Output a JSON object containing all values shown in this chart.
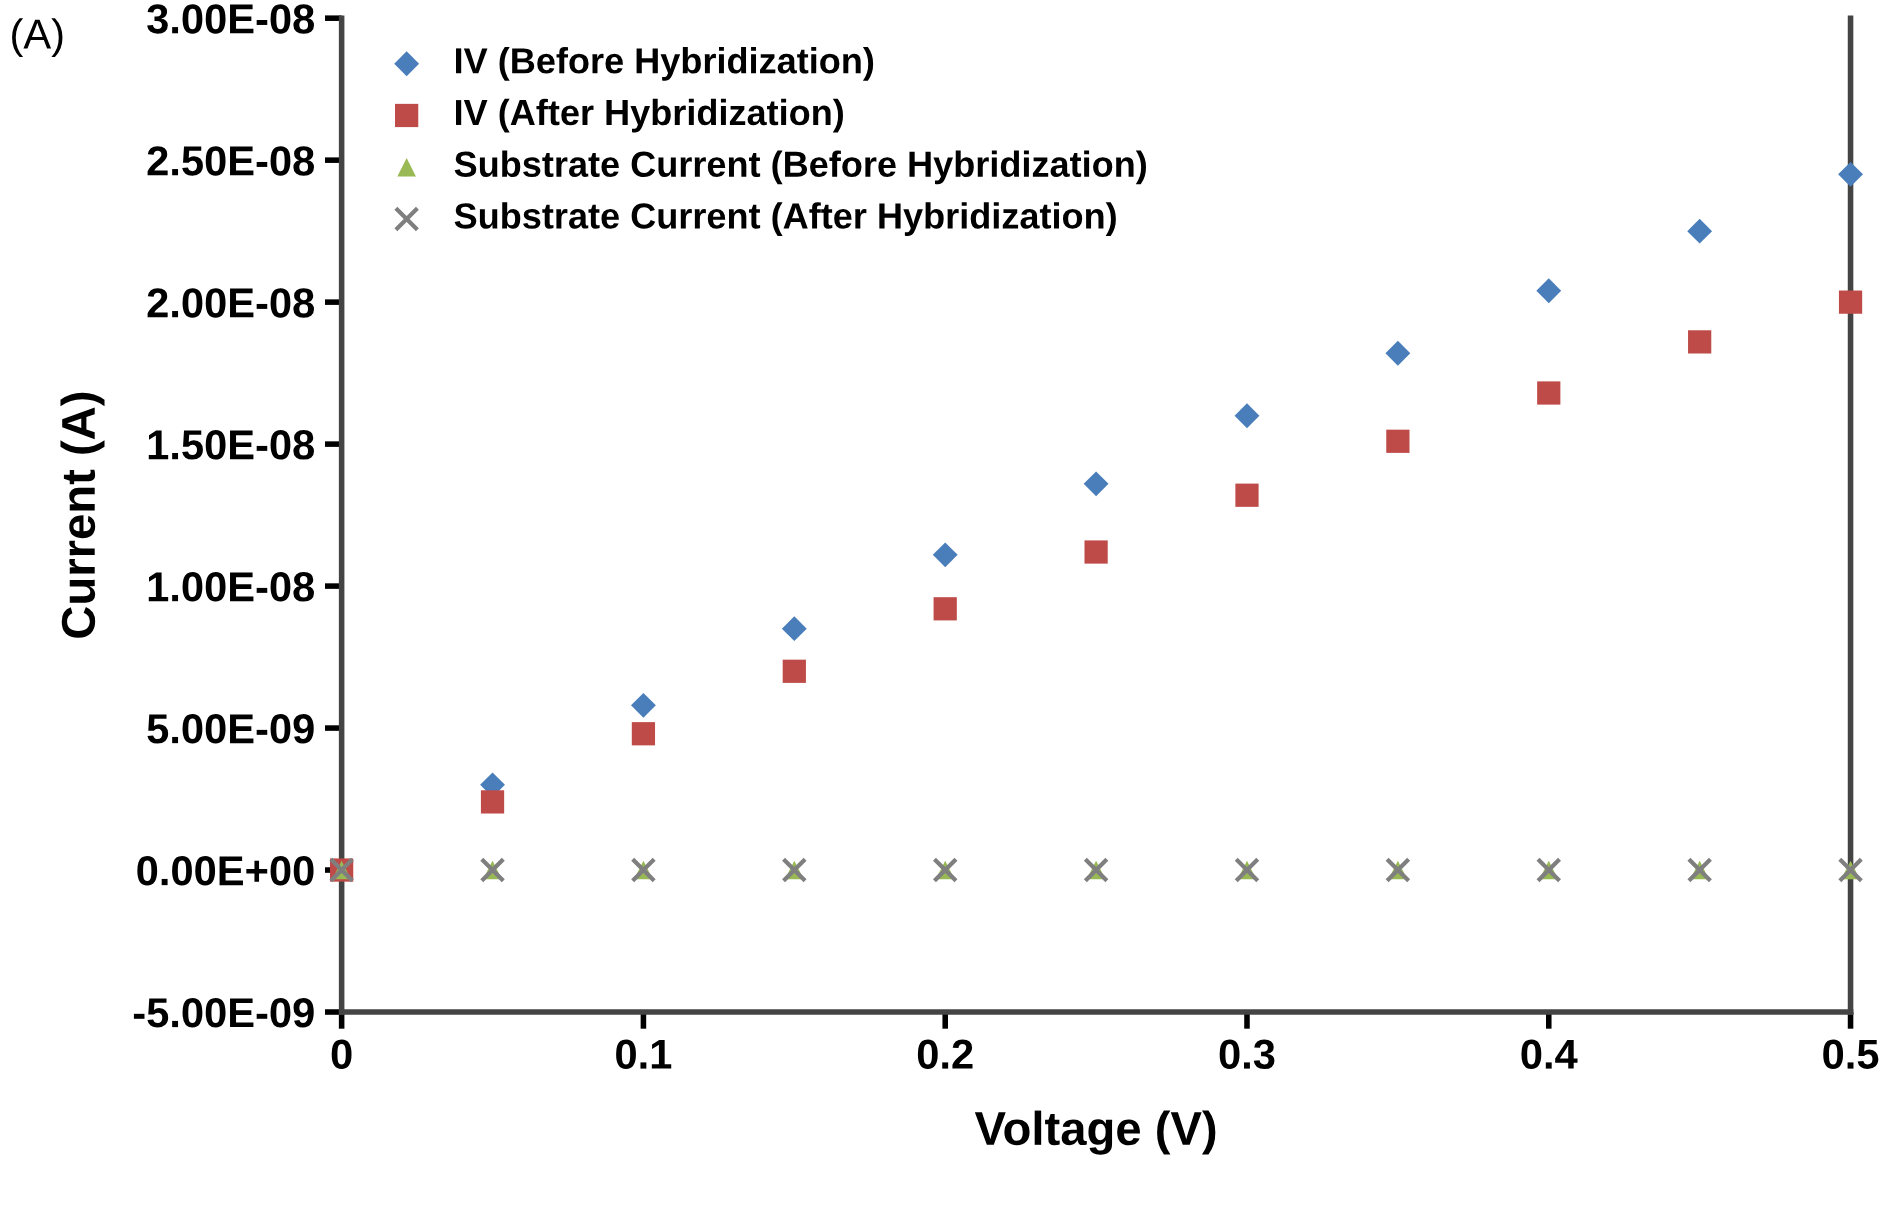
{
  "chart_data": {
    "type": "scatter",
    "xlabel": "Voltage (V)",
    "ylabel": "Current (A)",
    "annotations": [
      "(A)"
    ],
    "x": [
      0,
      0.05,
      0.1,
      0.15,
      0.2,
      0.25,
      0.3,
      0.35,
      0.4,
      0.45,
      0.5
    ],
    "series": [
      {
        "name": "IV (Before Hybridization)",
        "color": "#4a7ebb",
        "marker": "diamond",
        "values": [
          null,
          3e-09,
          5.8e-09,
          8.5e-09,
          1.11e-08,
          1.36e-08,
          1.6e-08,
          1.82e-08,
          2.04e-08,
          2.25e-08,
          2.45e-08
        ]
      },
      {
        "name": "IV (After Hybridization)",
        "color": "#be4b48",
        "marker": "square",
        "values": [
          0,
          2.4e-09,
          4.8e-09,
          7e-09,
          9.2e-09,
          1.12e-08,
          1.32e-08,
          1.51e-08,
          1.68e-08,
          1.86e-08,
          2e-08
        ]
      },
      {
        "name": "Substrate Current (Before Hybridization)",
        "color": "#98b954",
        "marker": "triangle",
        "values": [
          0,
          0,
          0,
          0,
          0,
          0,
          0,
          0,
          0,
          0,
          0
        ]
      },
      {
        "name": "Substrate Current (After Hybridization)",
        "color": "#7f7f7f",
        "marker": "cross",
        "values": [
          0,
          0,
          0,
          0,
          0,
          0,
          0,
          0,
          0,
          0,
          0
        ]
      }
    ],
    "xlim": [
      0,
      0.5
    ],
    "xticks": [
      0,
      0.1,
      0.2,
      0.3,
      0.4,
      0.5
    ],
    "ylim": [
      -5e-09,
      3e-08
    ],
    "yticks": [
      {
        "value": -5e-09,
        "label": "-5.00E-09"
      },
      {
        "value": 0,
        "label": "0.00E+00"
      },
      {
        "value": 5e-09,
        "label": "5.00E-09"
      },
      {
        "value": 1e-08,
        "label": "1.00E-08"
      },
      {
        "value": 1.5e-08,
        "label": "1.50E-08"
      },
      {
        "value": 2e-08,
        "label": "2.00E-08"
      },
      {
        "value": 2.5e-08,
        "label": "2.50E-08"
      },
      {
        "value": 3e-08,
        "label": "3.00E-08"
      }
    ],
    "grid": false,
    "legend": "top left"
  }
}
